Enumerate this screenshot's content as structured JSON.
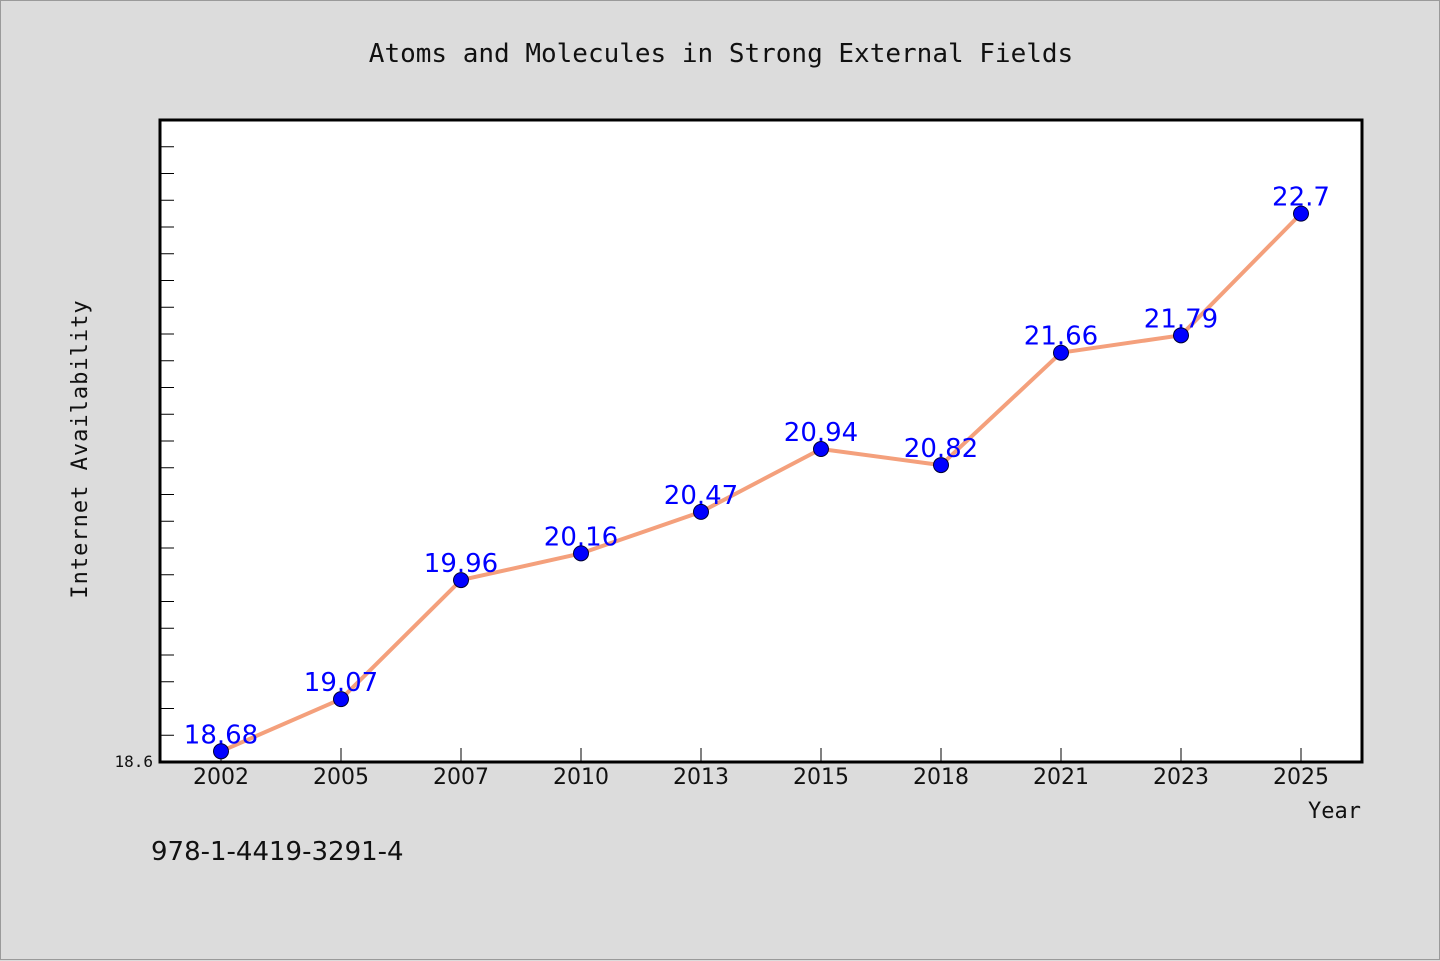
{
  "chart_data": {
    "type": "line",
    "title": "Atoms and Molecules in Strong External Fields",
    "xlabel": "Year",
    "ylabel": "Internet Availability",
    "categories": [
      "2002",
      "2005",
      "2007",
      "2010",
      "2013",
      "2015",
      "2018",
      "2021",
      "2023",
      "2025"
    ],
    "series": [
      {
        "values": [
          18.68,
          19.07,
          19.96,
          20.16,
          20.47,
          20.94,
          20.82,
          21.66,
          21.79,
          22.7
        ]
      }
    ],
    "y_tick_labels": [
      "18.6"
    ],
    "ylim": [
      18.6,
      23.4
    ],
    "grid": false,
    "legend": "none",
    "line_color": "#f4a07c",
    "marker_color": "#0000ff",
    "label_color": "#0000ff"
  },
  "footer_text": "978-1-4419-3291-4"
}
